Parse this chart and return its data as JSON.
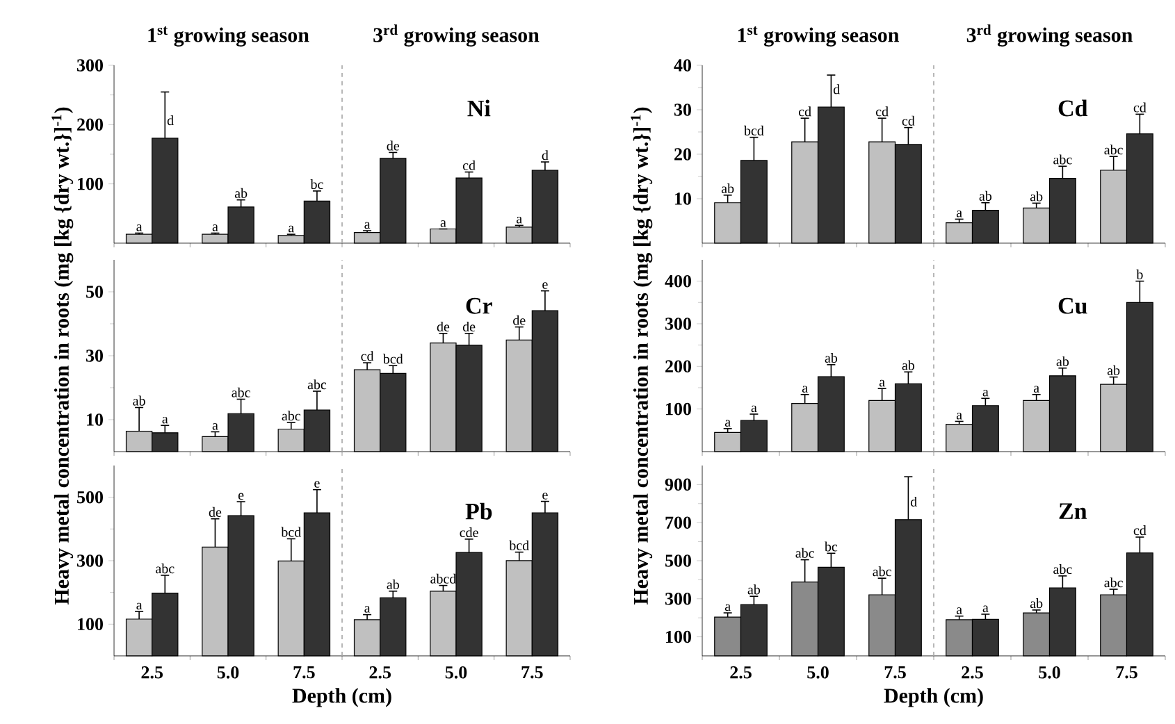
{
  "chart_data": [
    {
      "type": "bar",
      "title": "Ni",
      "categories": [
        "2.5",
        "5.0",
        "7.5",
        "2.5",
        "5.0",
        "7.5"
      ],
      "ylim": [
        0,
        300
      ],
      "yticks": [
        100,
        200,
        300
      ],
      "tick_labels": "y",
      "annotations": [
        "1$^{st}$ growing season",
        "3$^{rd}$ growing season"
      ],
      "series": [
        {
          "color": "#c0c0c0",
          "values": [
            15,
            15,
            13,
            18,
            24,
            27
          ],
          "errors": [
            [
              15,
              17
            ],
            [
              15,
              17
            ],
            [
              13,
              15
            ],
            [
              18,
              21
            ],
            [
              24,
              24
            ],
            [
              27,
              30
            ]
          ],
          "value_labels": [
            "a",
            "a",
            "a",
            "a",
            "a",
            "a"
          ]
        },
        {
          "color": "#333333",
          "values": [
            177,
            61,
            71,
            143,
            110,
            123
          ],
          "errors": [
            [
              177,
              255
            ],
            [
              61,
              73
            ],
            [
              71,
              88
            ],
            [
              143,
              153
            ],
            [
              110,
              120
            ],
            [
              123,
              137
            ]
          ],
          "value_labels": [
            "d",
            "ab",
            "bc",
            "de",
            "cd",
            "d"
          ]
        }
      ]
    },
    {
      "type": "bar",
      "title": "Cr",
      "categories": [
        "2.5",
        "5.0",
        "7.5",
        "2.5",
        "5.0",
        "7.5"
      ],
      "ylim": [
        0,
        60
      ],
      "yticks": [
        10,
        30,
        50
      ],
      "tick_labels": "y",
      "ylabel": "Heavy metal concentration in roots (mg [kg {dry wt.}]$^{-1}$)",
      "series": [
        {
          "color": "#c0c0c0",
          "values": [
            6.4,
            4.7,
            7.0,
            25.6,
            34.0,
            34.9
          ],
          "errors": [
            [
              6.4,
              13.8
            ],
            [
              4.7,
              6.2
            ],
            [
              7.0,
              9.1
            ],
            [
              25.6,
              27.8
            ],
            [
              34.0,
              37.0
            ],
            [
              34.9,
              39.0
            ]
          ],
          "value_labels": [
            "ab",
            "a",
            "abc",
            "cd",
            "de",
            "de"
          ]
        },
        {
          "color": "#333333",
          "values": [
            5.9,
            11.9,
            13.0,
            24.5,
            33.3,
            44.1
          ],
          "errors": [
            [
              5.9,
              8.2
            ],
            [
              11.9,
              16.4
            ],
            [
              13.0,
              18.9
            ],
            [
              24.5,
              26.9
            ],
            [
              33.3,
              37.0
            ],
            [
              44.1,
              50.3
            ]
          ],
          "value_labels": [
            "a",
            "abc",
            "abc",
            "bcd",
            "de",
            "e"
          ]
        }
      ]
    },
    {
      "type": "bar",
      "title": "Pb",
      "categories": [
        "2.5",
        "5.0",
        "7.5",
        "2.5",
        "5.0",
        "7.5"
      ],
      "ylim": [
        0,
        600
      ],
      "yticks": [
        100,
        300,
        500
      ],
      "xlabel": "Depth (cm)",
      "series": [
        {
          "color": "#c0c0c0",
          "values": [
            116,
            343,
            299,
            114,
            204,
            300
          ],
          "errors": [
            [
              116,
              140
            ],
            [
              343,
              432
            ],
            [
              299,
              369
            ],
            [
              114,
              130
            ],
            [
              204,
              222
            ],
            [
              300,
              327
            ]
          ],
          "value_labels": [
            "a",
            "de",
            "bcd",
            "a",
            "abcd",
            "bcd"
          ]
        },
        {
          "color": "#333333",
          "values": [
            198,
            442,
            451,
            183,
            326,
            451
          ],
          "errors": [
            [
              198,
              254
            ],
            [
              442,
              486
            ],
            [
              451,
              524
            ],
            [
              183,
              204
            ],
            [
              326,
              368
            ],
            [
              451,
              487
            ]
          ],
          "value_labels": [
            "abc",
            "e",
            "e",
            "ab",
            "cde",
            "e"
          ]
        }
      ]
    },
    {
      "type": "bar",
      "title": "Cd",
      "categories": [
        "2.5",
        "5.0",
        "7.5",
        "2.5",
        "5.0",
        "7.5"
      ],
      "ylim": [
        0,
        40
      ],
      "yticks": [
        10,
        20,
        30,
        40
      ],
      "tick_labels": "y",
      "annotations": [
        "1$^{st}$ growing season",
        "3$^{rd}$ growing season"
      ],
      "series": [
        {
          "color": "#c0c0c0",
          "values": [
            9.1,
            22.8,
            22.8,
            4.6,
            7.9,
            16.4
          ],
          "errors": [
            [
              9.1,
              10.8
            ],
            [
              22.8,
              28.1
            ],
            [
              22.8,
              28.1
            ],
            [
              4.6,
              5.4
            ],
            [
              7.9,
              9.0
            ],
            [
              16.4,
              19.5
            ]
          ],
          "value_labels": [
            "ab",
            "cd",
            "cd",
            "a",
            "ab",
            "abc"
          ]
        },
        {
          "color": "#333333",
          "values": [
            18.6,
            30.6,
            22.2,
            7.4,
            14.6,
            24.6
          ],
          "errors": [
            [
              18.6,
              23.8
            ],
            [
              30.6,
              37.8
            ],
            [
              22.2,
              26.0
            ],
            [
              7.4,
              9.1
            ],
            [
              14.6,
              17.3
            ],
            [
              24.6,
              29.0
            ]
          ],
          "value_labels": [
            "bcd",
            "d",
            "cd",
            "ab",
            "abc",
            "cd"
          ]
        }
      ]
    },
    {
      "type": "bar",
      "title": "Cu",
      "categories": [
        "2.5",
        "5.0",
        "7.5",
        "2.5",
        "5.0",
        "7.5"
      ],
      "ylim": [
        0,
        450
      ],
      "yticks": [
        100,
        200,
        300,
        400
      ],
      "tick_labels": "y",
      "ylabel": "Heavy metal concentration in roots (mg [kg {dry wt.}]$^{-1}$)",
      "series": [
        {
          "color": "#c0c0c0",
          "values": [
            45,
            113,
            120,
            64,
            120,
            158
          ],
          "errors": [
            [
              45,
              54
            ],
            [
              113,
              134
            ],
            [
              120,
              148
            ],
            [
              64,
              71
            ],
            [
              120,
              134
            ],
            [
              158,
              175
            ]
          ],
          "value_labels": [
            "a",
            "a",
            "a",
            "a",
            "a",
            "ab"
          ]
        },
        {
          "color": "#333333",
          "values": [
            73,
            176,
            159,
            108,
            178,
            350
          ],
          "errors": [
            [
              73,
              88
            ],
            [
              176,
              204
            ],
            [
              159,
              187
            ],
            [
              108,
              125
            ],
            [
              178,
              196
            ],
            [
              350,
              400
            ]
          ],
          "value_labels": [
            "a",
            "ab",
            "ab",
            "a",
            "ab",
            "b"
          ]
        }
      ]
    },
    {
      "type": "bar",
      "title": "Zn",
      "categories": [
        "2.5",
        "5.0",
        "7.5",
        "2.5",
        "5.0",
        "7.5"
      ],
      "ylim": [
        0,
        1000
      ],
      "yticks": [
        100,
        300,
        500,
        700,
        900
      ],
      "xlabel": "Depth (cm)",
      "series": [
        {
          "color": "#8a8a8a",
          "values": [
            204,
            388,
            321,
            190,
            226,
            321
          ],
          "errors": [
            [
              204,
              226
            ],
            [
              388,
              505
            ],
            [
              321,
              408
            ],
            [
              190,
              209
            ],
            [
              226,
              241
            ],
            [
              321,
              350
            ]
          ],
          "value_labels": [
            "a",
            "abc",
            "abc",
            "a",
            "ab",
            "abc"
          ]
        },
        {
          "color": "#333333",
          "values": [
            270,
            466,
            716,
            192,
            357,
            541
          ],
          "errors": [
            [
              270,
              313
            ],
            [
              466,
              539
            ],
            [
              716,
              941
            ],
            [
              192,
              219
            ],
            [
              357,
              420
            ],
            [
              541,
              624
            ]
          ],
          "value_labels": [
            "ab",
            "bc",
            "d",
            "a",
            "abc",
            "cd"
          ]
        }
      ]
    }
  ]
}
